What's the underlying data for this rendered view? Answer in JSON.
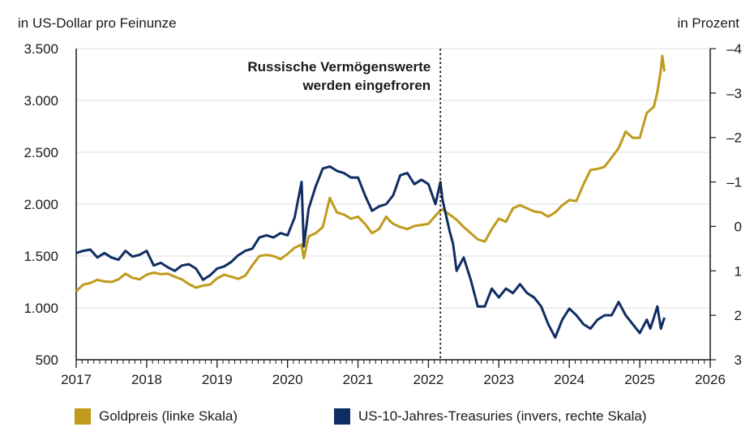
{
  "chart_data": {
    "type": "line",
    "left_axis_title": "in US-Dollar pro Feinunze",
    "right_axis_title": "in Prozent",
    "annotation": [
      "Russische Vermögenswerte",
      "werden eingefroren"
    ],
    "annotation_x": 2022.17,
    "x_range": [
      2017,
      2026
    ],
    "x_ticks": [
      "2017",
      "2018",
      "2019",
      "2020",
      "2021",
      "2022",
      "2023",
      "2024",
      "2025",
      "2026"
    ],
    "y_left_range": [
      500,
      3500
    ],
    "y_left_ticks": [
      "500",
      "1.000",
      "1.500",
      "2.000",
      "2.500",
      "3.000",
      "3.500"
    ],
    "y_right_range": [
      3,
      -4
    ],
    "y_right_inverted": true,
    "y_right_ticks": [
      "3",
      "2",
      "1",
      "0",
      "–1",
      "–2",
      "–3",
      "–4"
    ],
    "grid": true,
    "legend_position": "bottom",
    "series": [
      {
        "name": "Goldpreis (linke Skala)",
        "axis": "left",
        "color": "#c09a1c",
        "points": [
          [
            2017.0,
            1160
          ],
          [
            2017.1,
            1225
          ],
          [
            2017.2,
            1240
          ],
          [
            2017.3,
            1270
          ],
          [
            2017.4,
            1255
          ],
          [
            2017.5,
            1250
          ],
          [
            2017.6,
            1275
          ],
          [
            2017.7,
            1330
          ],
          [
            2017.8,
            1290
          ],
          [
            2017.9,
            1275
          ],
          [
            2018.0,
            1320
          ],
          [
            2018.1,
            1340
          ],
          [
            2018.2,
            1325
          ],
          [
            2018.3,
            1330
          ],
          [
            2018.4,
            1300
          ],
          [
            2018.5,
            1275
          ],
          [
            2018.6,
            1230
          ],
          [
            2018.7,
            1195
          ],
          [
            2018.8,
            1215
          ],
          [
            2018.9,
            1225
          ],
          [
            2019.0,
            1285
          ],
          [
            2019.1,
            1320
          ],
          [
            2019.2,
            1300
          ],
          [
            2019.3,
            1280
          ],
          [
            2019.4,
            1310
          ],
          [
            2019.5,
            1410
          ],
          [
            2019.6,
            1500
          ],
          [
            2019.7,
            1510
          ],
          [
            2019.8,
            1500
          ],
          [
            2019.9,
            1470
          ],
          [
            2020.0,
            1520
          ],
          [
            2020.1,
            1580
          ],
          [
            2020.2,
            1610
          ],
          [
            2020.23,
            1480
          ],
          [
            2020.3,
            1690
          ],
          [
            2020.4,
            1720
          ],
          [
            2020.5,
            1780
          ],
          [
            2020.55,
            1920
          ],
          [
            2020.6,
            2060
          ],
          [
            2020.7,
            1920
          ],
          [
            2020.8,
            1900
          ],
          [
            2020.9,
            1860
          ],
          [
            2021.0,
            1880
          ],
          [
            2021.1,
            1810
          ],
          [
            2021.2,
            1720
          ],
          [
            2021.3,
            1760
          ],
          [
            2021.4,
            1880
          ],
          [
            2021.45,
            1840
          ],
          [
            2021.5,
            1810
          ],
          [
            2021.6,
            1780
          ],
          [
            2021.7,
            1760
          ],
          [
            2021.8,
            1790
          ],
          [
            2021.9,
            1800
          ],
          [
            2022.0,
            1810
          ],
          [
            2022.1,
            1890
          ],
          [
            2022.17,
            1940
          ],
          [
            2022.2,
            1950
          ],
          [
            2022.3,
            1900
          ],
          [
            2022.4,
            1850
          ],
          [
            2022.5,
            1780
          ],
          [
            2022.6,
            1720
          ],
          [
            2022.7,
            1660
          ],
          [
            2022.8,
            1640
          ],
          [
            2022.9,
            1760
          ],
          [
            2023.0,
            1860
          ],
          [
            2023.1,
            1830
          ],
          [
            2023.2,
            1960
          ],
          [
            2023.3,
            1990
          ],
          [
            2023.4,
            1960
          ],
          [
            2023.5,
            1930
          ],
          [
            2023.6,
            1920
          ],
          [
            2023.7,
            1880
          ],
          [
            2023.8,
            1920
          ],
          [
            2023.9,
            1990
          ],
          [
            2024.0,
            2040
          ],
          [
            2024.1,
            2030
          ],
          [
            2024.2,
            2190
          ],
          [
            2024.3,
            2330
          ],
          [
            2024.4,
            2340
          ],
          [
            2024.5,
            2360
          ],
          [
            2024.6,
            2450
          ],
          [
            2024.7,
            2540
          ],
          [
            2024.8,
            2700
          ],
          [
            2024.9,
            2640
          ],
          [
            2025.0,
            2640
          ],
          [
            2025.1,
            2880
          ],
          [
            2025.2,
            2940
          ],
          [
            2025.25,
            3080
          ],
          [
            2025.3,
            3300
          ],
          [
            2025.32,
            3430
          ],
          [
            2025.35,
            3280
          ]
        ]
      },
      {
        "name": "US-10-Jahres-Treasuries (invers, rechte Skala)",
        "axis": "right",
        "color": "#0f2d62",
        "points": [
          [
            2017.0,
            0.6
          ],
          [
            2017.1,
            0.55
          ],
          [
            2017.2,
            0.52
          ],
          [
            2017.3,
            0.7
          ],
          [
            2017.4,
            0.6
          ],
          [
            2017.5,
            0.7
          ],
          [
            2017.6,
            0.75
          ],
          [
            2017.7,
            0.55
          ],
          [
            2017.8,
            0.68
          ],
          [
            2017.9,
            0.64
          ],
          [
            2018.0,
            0.55
          ],
          [
            2018.1,
            0.88
          ],
          [
            2018.2,
            0.82
          ],
          [
            2018.3,
            0.92
          ],
          [
            2018.4,
            1.0
          ],
          [
            2018.5,
            0.88
          ],
          [
            2018.6,
            0.85
          ],
          [
            2018.7,
            0.95
          ],
          [
            2018.8,
            1.2
          ],
          [
            2018.9,
            1.1
          ],
          [
            2019.0,
            0.95
          ],
          [
            2019.1,
            0.9
          ],
          [
            2019.2,
            0.8
          ],
          [
            2019.3,
            0.65
          ],
          [
            2019.4,
            0.55
          ],
          [
            2019.5,
            0.5
          ],
          [
            2019.6,
            0.25
          ],
          [
            2019.7,
            0.2
          ],
          [
            2019.8,
            0.25
          ],
          [
            2019.9,
            0.15
          ],
          [
            2020.0,
            0.2
          ],
          [
            2020.1,
            -0.2
          ],
          [
            2020.15,
            -0.6
          ],
          [
            2020.2,
            -1.0
          ],
          [
            2020.23,
            0.45
          ],
          [
            2020.3,
            -0.4
          ],
          [
            2020.4,
            -0.9
          ],
          [
            2020.5,
            -1.3
          ],
          [
            2020.6,
            -1.35
          ],
          [
            2020.7,
            -1.25
          ],
          [
            2020.8,
            -1.2
          ],
          [
            2020.9,
            -1.1
          ],
          [
            2021.0,
            -1.1
          ],
          [
            2021.1,
            -0.7
          ],
          [
            2021.2,
            -0.35
          ],
          [
            2021.3,
            -0.45
          ],
          [
            2021.4,
            -0.5
          ],
          [
            2021.5,
            -0.7
          ],
          [
            2021.6,
            -1.15
          ],
          [
            2021.7,
            -1.2
          ],
          [
            2021.8,
            -0.95
          ],
          [
            2021.9,
            -1.05
          ],
          [
            2022.0,
            -0.95
          ],
          [
            2022.1,
            -0.5
          ],
          [
            2022.17,
            -1.0
          ],
          [
            2022.2,
            -0.6
          ],
          [
            2022.3,
            0.1
          ],
          [
            2022.35,
            0.4
          ],
          [
            2022.4,
            1.0
          ],
          [
            2022.5,
            0.7
          ],
          [
            2022.6,
            1.2
          ],
          [
            2022.7,
            1.8
          ],
          [
            2022.8,
            1.8
          ],
          [
            2022.9,
            1.4
          ],
          [
            2023.0,
            1.6
          ],
          [
            2023.1,
            1.4
          ],
          [
            2023.2,
            1.5
          ],
          [
            2023.3,
            1.3
          ],
          [
            2023.4,
            1.5
          ],
          [
            2023.5,
            1.6
          ],
          [
            2023.6,
            1.8
          ],
          [
            2023.7,
            2.2
          ],
          [
            2023.8,
            2.5
          ],
          [
            2023.9,
            2.1
          ],
          [
            2024.0,
            1.85
          ],
          [
            2024.1,
            2.0
          ],
          [
            2024.2,
            2.2
          ],
          [
            2024.3,
            2.3
          ],
          [
            2024.4,
            2.1
          ],
          [
            2024.5,
            2.0
          ],
          [
            2024.6,
            2.0
          ],
          [
            2024.7,
            1.7
          ],
          [
            2024.8,
            2.0
          ],
          [
            2024.9,
            2.2
          ],
          [
            2025.0,
            2.4
          ],
          [
            2025.1,
            2.1
          ],
          [
            2025.15,
            2.3
          ],
          [
            2025.2,
            2.05
          ],
          [
            2025.25,
            1.8
          ],
          [
            2025.3,
            2.3
          ],
          [
            2025.35,
            2.05
          ]
        ]
      }
    ]
  }
}
